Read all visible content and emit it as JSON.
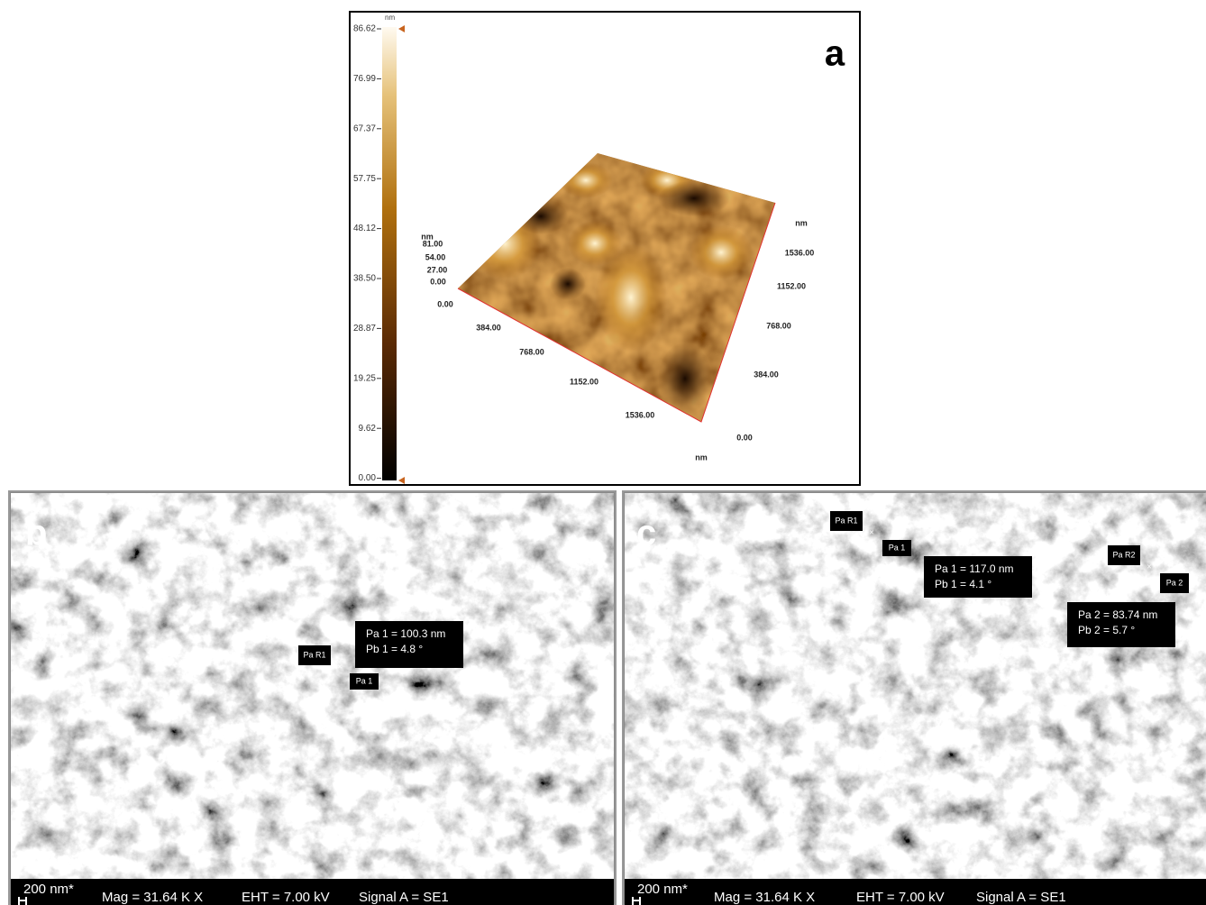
{
  "panel_a": {
    "label": "a",
    "colorbar_unit": "nm",
    "colorbar_ticks": [
      "86.62",
      "76.99",
      "67.37",
      "57.75",
      "48.12",
      "38.50",
      "28.87",
      "19.25",
      "9.62",
      "0.00"
    ],
    "z_unit": "nm",
    "z_ticks": [
      "81.00",
      "54.00",
      "27.00",
      "0.00"
    ],
    "z_origin": "0.00",
    "x_ticks": [
      "384.00",
      "768.00",
      "1152.00",
      "1536.00"
    ],
    "y_unit": "nm",
    "y_ticks": [
      "1536.00",
      "1152.00",
      "768.00",
      "384.00"
    ],
    "y_origin": "0.00",
    "x_unit": "nm"
  },
  "panel_b": {
    "label": "b",
    "markers": [
      "Pa R1",
      "Pa 1"
    ],
    "measurements": [
      [
        "Pa 1 = 100.3 nm",
        "Pb 1 = 4.8 °"
      ]
    ],
    "scale": "200 nm*",
    "info": [
      "Mag = 31.64 K X",
      "EHT = 7.00 kV",
      "Signal A = SE1"
    ]
  },
  "panel_c": {
    "label": "c",
    "markers": [
      "Pa R1",
      "Pa 1",
      "Pa R2",
      "Pa 2"
    ],
    "measurements": [
      [
        "Pa 1 = 117.0 nm",
        "Pb 1 = 4.1 °"
      ],
      [
        "Pa 2 = 83.74 nm",
        "Pb 2 = 5.7 °"
      ]
    ],
    "scale": "200 nm*",
    "info": [
      "Mag = 31.64 K X",
      "EHT = 7.00 kV",
      "Signal A = SE1"
    ]
  }
}
